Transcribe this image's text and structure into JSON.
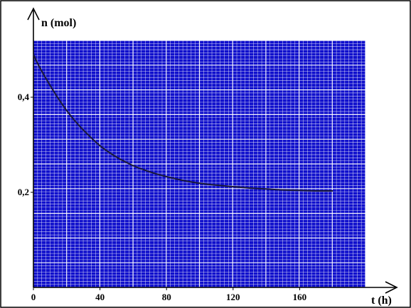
{
  "chart_data": {
    "type": "line",
    "title": "",
    "xlabel": "t (h)",
    "ylabel": "n (mol)",
    "xlim": [
      0,
      200
    ],
    "ylim": [
      0,
      0.5
    ],
    "x_ticks": [
      "0",
      "40",
      "80",
      "120",
      "160"
    ],
    "y_ticks": [
      "0,2",
      "0,4"
    ],
    "x_tick_values": [
      0,
      40,
      80,
      120,
      160
    ],
    "y_tick_values": [
      0.2,
      0.4
    ],
    "grid": true,
    "colors": {
      "grid_background": "#1010cc",
      "grid_lines": "#ffffff",
      "curve": "#1a1a3a",
      "axes": "#000000"
    },
    "series": [
      {
        "x": [
          0,
          2,
          5,
          10,
          15,
          20,
          25,
          30,
          40,
          50,
          60,
          70,
          80,
          90,
          100,
          110,
          120,
          130,
          140,
          150,
          160,
          170,
          180
        ],
        "y": [
          0.49,
          0.475,
          0.455,
          0.425,
          0.397,
          0.372,
          0.35,
          0.331,
          0.298,
          0.274,
          0.256,
          0.243,
          0.233,
          0.225,
          0.219,
          0.215,
          0.212,
          0.209,
          0.207,
          0.205,
          0.204,
          0.203,
          0.203
        ]
      }
    ]
  }
}
